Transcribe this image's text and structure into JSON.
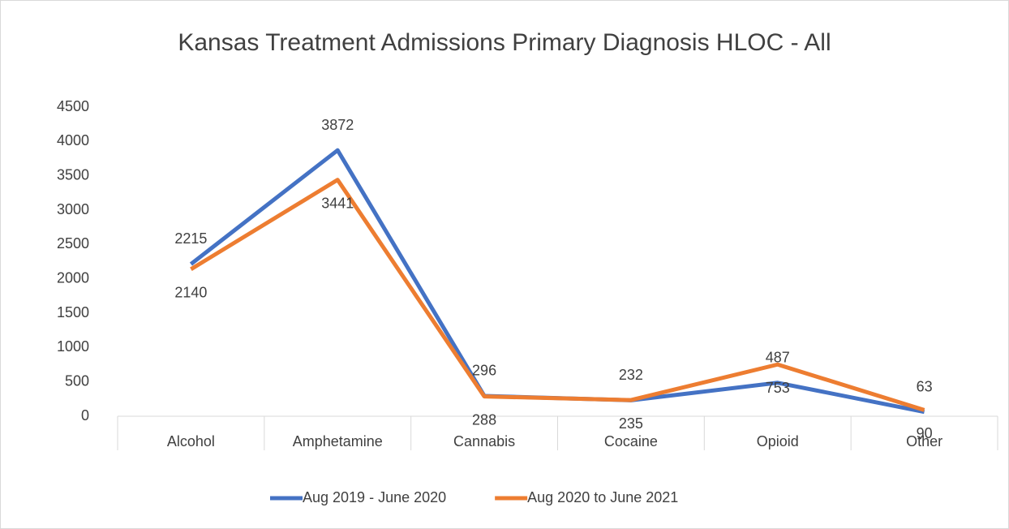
{
  "chart_data": {
    "type": "line",
    "title": "Kansas Treatment Admissions Primary Diagnosis HLOC - All",
    "categories": [
      "Alcohol",
      "Amphetamine",
      "Cannabis",
      "Cocaine",
      "Opioid",
      "Other"
    ],
    "series": [
      {
        "name": "Aug 2019 - June 2020",
        "color": "#4472c4",
        "values": [
          2215,
          3872,
          296,
          232,
          487,
          63
        ]
      },
      {
        "name": "Aug 2020 to June 2021",
        "color": "#ed7d31",
        "values": [
          2140,
          3441,
          288,
          235,
          753,
          90
        ]
      }
    ],
    "ylim": [
      0,
      4500
    ],
    "yticks": [
      0,
      500,
      1000,
      1500,
      2000,
      2500,
      3000,
      3500,
      4000,
      4500
    ],
    "grid": false,
    "legend": "bottom"
  }
}
